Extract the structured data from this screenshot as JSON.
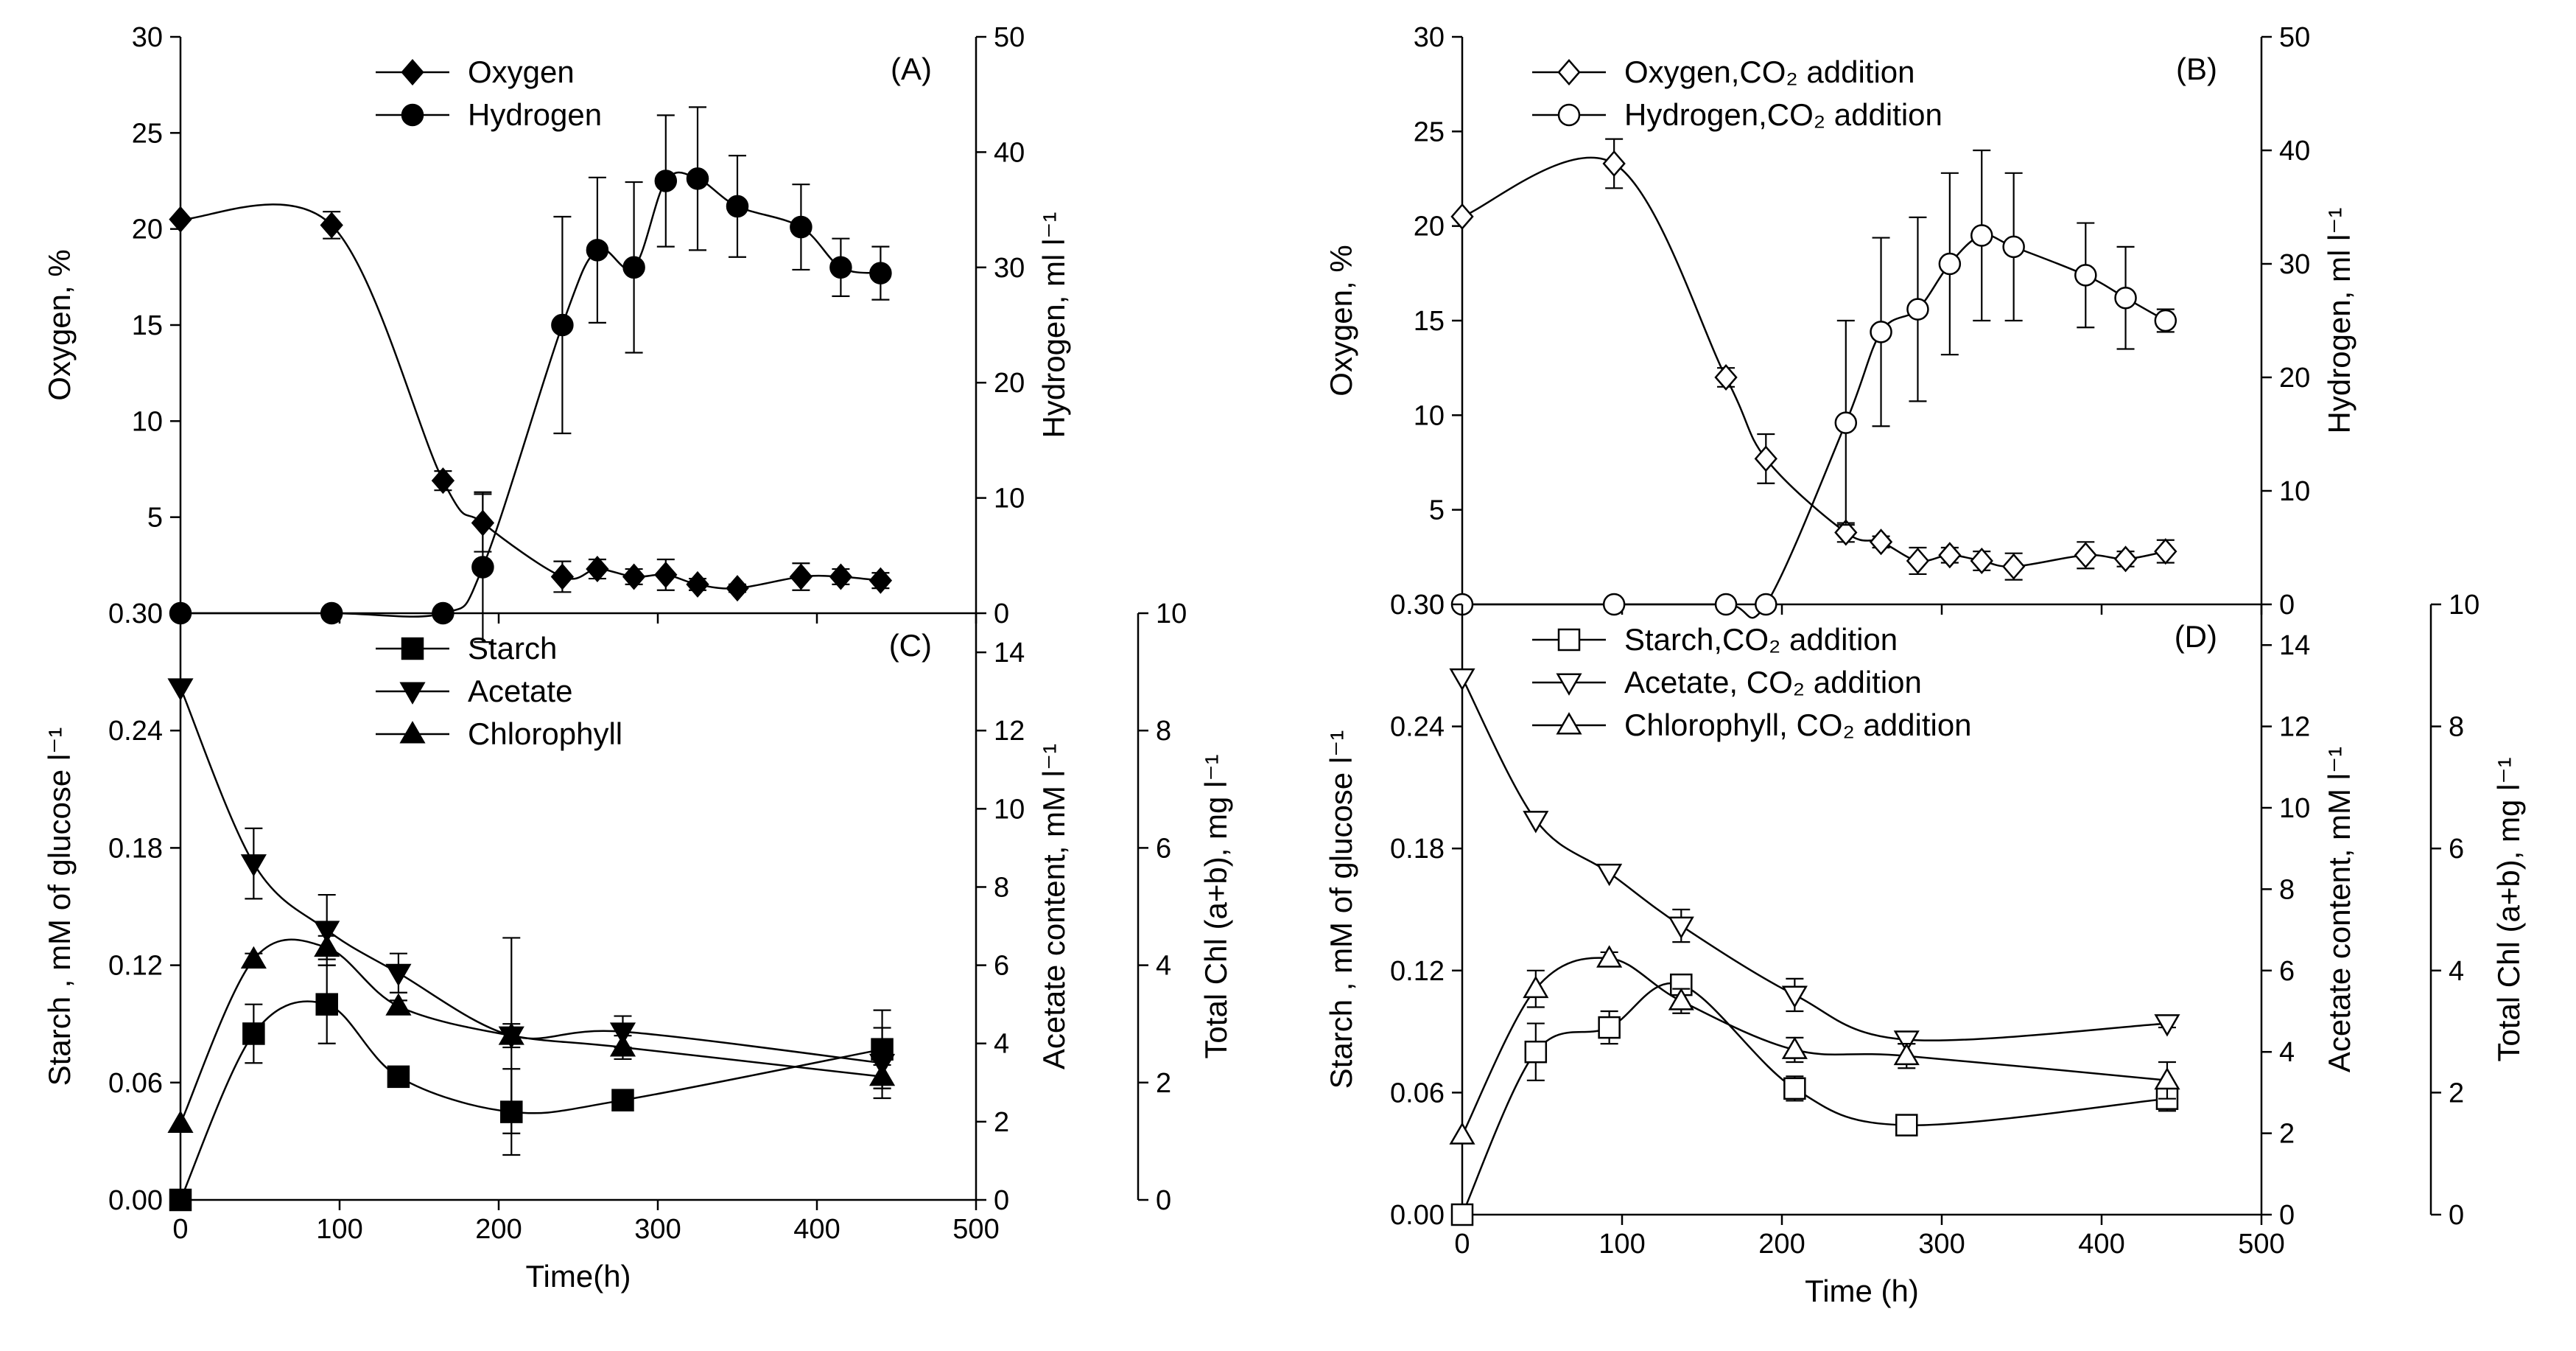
{
  "chart_data": [
    {
      "id": "A",
      "type": "line",
      "panel_label": "(A)",
      "xlabel": "",
      "ylabel_left": "Oxygen, %",
      "ylabel_right": "Hydrogen, ml l⁻¹",
      "xlim": [
        0,
        500
      ],
      "xticks": [
        "",
        "",
        "",
        "",
        "",
        ""
      ],
      "ylim_left": [
        0,
        30
      ],
      "yticks_left": [
        "0",
        "5",
        "10",
        "15",
        "20",
        "25",
        "30"
      ],
      "ylim_right": [
        0,
        50
      ],
      "yticks_right": [
        "0",
        "10",
        "20",
        "30",
        "40",
        "50"
      ],
      "legend_position": "top-center",
      "series": [
        {
          "name": "Oxygen",
          "marker": "diamond-filled",
          "axis": "left",
          "x": [
            0,
            95,
            165,
            190,
            240,
            262,
            285,
            305,
            325,
            350,
            390,
            415,
            440
          ],
          "y": [
            20.5,
            20.2,
            6.9,
            4.7,
            1.9,
            2.3,
            1.9,
            2.0,
            1.5,
            1.3,
            1.9,
            1.9,
            1.7
          ],
          "err": [
            0,
            0.7,
            0.5,
            1.5,
            0.8,
            0.5,
            0.4,
            0.8,
            0.3,
            0.2,
            0.7,
            0.4,
            0.4
          ]
        },
        {
          "name": "Hydrogen",
          "marker": "circle-filled",
          "axis": "right",
          "x": [
            0,
            95,
            165,
            190,
            240,
            262,
            285,
            305,
            325,
            350,
            390,
            415,
            440
          ],
          "y": [
            0,
            0,
            0,
            4.0,
            25.0,
            31.5,
            30.0,
            37.5,
            37.7,
            35.3,
            33.5,
            30.0,
            29.5
          ],
          "err": [
            0,
            0,
            0,
            6.5,
            9.4,
            6.3,
            7.4,
            5.7,
            6.2,
            4.4,
            3.7,
            2.5,
            2.3
          ]
        }
      ]
    },
    {
      "id": "B",
      "type": "line",
      "panel_label": "(B)",
      "xlabel": "",
      "ylabel_left": "Oxygen, %",
      "ylabel_right": "Hydrogen, ml l⁻¹",
      "xlim": [
        0,
        500
      ],
      "xticks": [
        "",
        "",
        "",
        "",
        "",
        ""
      ],
      "ylim_left": [
        0,
        30
      ],
      "yticks_left": [
        "0",
        "5",
        "10",
        "15",
        "20",
        "25",
        "30"
      ],
      "ylim_right": [
        0,
        50
      ],
      "yticks_right": [
        "0",
        "10",
        "20",
        "30",
        "40",
        "50"
      ],
      "legend_position": "top-center",
      "series": [
        {
          "name": "Oxygen,CO₂ addition",
          "marker": "diamond-open",
          "axis": "left",
          "x": [
            0,
            95,
            165,
            190,
            240,
            262,
            285,
            305,
            325,
            345,
            390,
            415,
            440
          ],
          "y": [
            20.5,
            23.3,
            12.0,
            7.7,
            3.8,
            3.3,
            2.3,
            2.6,
            2.3,
            2.0,
            2.6,
            2.4,
            2.8
          ],
          "err": [
            0,
            1.3,
            0.5,
            1.3,
            0.5,
            0.3,
            0.7,
            0.4,
            0.5,
            0.7,
            0.7,
            0.4,
            0.6
          ]
        },
        {
          "name": "Hydrogen,CO₂ addition",
          "marker": "circle-open",
          "axis": "right",
          "x": [
            0,
            95,
            165,
            190,
            240,
            262,
            285,
            305,
            325,
            345,
            390,
            415,
            440
          ],
          "y": [
            0,
            0,
            0,
            0,
            16.0,
            24.0,
            26.0,
            30.0,
            32.5,
            31.5,
            29.0,
            27.0,
            25.0
          ],
          "err": [
            0,
            0,
            0,
            0,
            9.0,
            8.3,
            8.1,
            8.0,
            7.5,
            6.5,
            4.6,
            4.5,
            1.0
          ]
        }
      ]
    },
    {
      "id": "C",
      "type": "line",
      "panel_label": "(C)",
      "xlabel": "Time(h)",
      "ylabel_left": "Starch , mM of glucose l⁻¹",
      "ylabel_right": "Acetate content, mM l⁻¹",
      "ylabel_right2": "Total Chl (a+b), mg l⁻¹",
      "xlim": [
        0,
        500
      ],
      "xticks": [
        "0",
        "100",
        "200",
        "300",
        "400",
        "500"
      ],
      "ylim_left": [
        0,
        0.3
      ],
      "yticks_left": [
        "0.00",
        "0.06",
        "0.12",
        "0.18",
        "0.24",
        "0.30"
      ],
      "ylim_right": [
        0,
        15
      ],
      "yticks_right": [
        "0",
        "2",
        "4",
        "6",
        "8",
        "10",
        "12",
        "14"
      ],
      "ylim_right2": [
        0,
        10
      ],
      "yticks_right2": [
        "0",
        "2",
        "4",
        "6",
        "8",
        "10"
      ],
      "legend_position": "top-center",
      "series": [
        {
          "name": "Starch",
          "marker": "square-filled",
          "axis": "left",
          "x": [
            0,
            46,
            92,
            137,
            208,
            278,
            441
          ],
          "y": [
            0,
            0.085,
            0.1,
            0.063,
            0.045,
            0.051,
            0.077
          ],
          "err": [
            0,
            0.015,
            0.02,
            0,
            0.022,
            0,
            0.02
          ]
        },
        {
          "name": "Acetate",
          "marker": "triangle-down-filled",
          "axis": "right",
          "x": [
            0,
            46,
            92,
            137,
            208,
            278,
            441
          ],
          "y": [
            13.1,
            8.6,
            6.9,
            5.8,
            4.2,
            4.3,
            3.5
          ],
          "err": [
            0,
            0.9,
            0.9,
            0.5,
            2.5,
            0.4,
            0.9
          ]
        },
        {
          "name": "Chlorophyll",
          "marker": "triangle-up-filled",
          "axis": "right2",
          "x": [
            0,
            46,
            92,
            137,
            208,
            278,
            441
          ],
          "y": [
            1.3,
            4.1,
            4.3,
            3.3,
            2.8,
            2.6,
            2.1
          ],
          "err": [
            0,
            0.1,
            0.2,
            0.1,
            0.2,
            0.2,
            0.2
          ]
        }
      ]
    },
    {
      "id": "D",
      "type": "line",
      "panel_label": "(D)",
      "xlabel": "Time (h)",
      "ylabel_left": "Starch , mM of glucose l⁻¹",
      "ylabel_right": "Acetate content, mM l⁻¹",
      "ylabel_right2": "Total Chl (a+b), mg l⁻¹",
      "xlim": [
        0,
        500
      ],
      "xticks": [
        "0",
        "100",
        "200",
        "300",
        "400",
        "500"
      ],
      "ylim_left": [
        0,
        0.3
      ],
      "yticks_left": [
        "0.00",
        "0.06",
        "0.12",
        "0.18",
        "0.24",
        "0.30"
      ],
      "ylim_right": [
        0,
        15
      ],
      "yticks_right": [
        "0",
        "2",
        "4",
        "6",
        "8",
        "10",
        "12",
        "14"
      ],
      "ylim_right2": [
        0,
        10
      ],
      "yticks_right2": [
        "0",
        "2",
        "4",
        "6",
        "8",
        "10"
      ],
      "legend_position": "top-center",
      "series": [
        {
          "name": "Starch,CO₂ addition",
          "marker": "square-open",
          "axis": "left",
          "x": [
            0,
            46,
            92,
            137,
            208,
            278,
            441
          ],
          "y": [
            0,
            0.08,
            0.092,
            0.113,
            0.062,
            0.044,
            0.057
          ],
          "err": [
            0,
            0.014,
            0.008,
            0.005,
            0.006,
            0,
            0.006
          ]
        },
        {
          "name": "Acetate, CO₂ addition",
          "marker": "triangle-down-open",
          "axis": "right",
          "x": [
            0,
            46,
            92,
            137,
            208,
            278,
            441
          ],
          "y": [
            13.2,
            9.7,
            8.4,
            7.1,
            5.4,
            4.3,
            4.7
          ],
          "err": [
            0,
            0,
            0,
            0.4,
            0.4,
            0.1,
            0.1
          ]
        },
        {
          "name": "Chlorophyll, CO₂ addition",
          "marker": "triangle-up-open",
          "axis": "right2",
          "x": [
            0,
            46,
            92,
            137,
            208,
            278,
            441
          ],
          "y": [
            1.3,
            3.7,
            4.2,
            3.5,
            2.7,
            2.6,
            2.2
          ],
          "err": [
            0,
            0.3,
            0.1,
            0.2,
            0.2,
            0.2,
            0.3
          ]
        }
      ]
    }
  ]
}
